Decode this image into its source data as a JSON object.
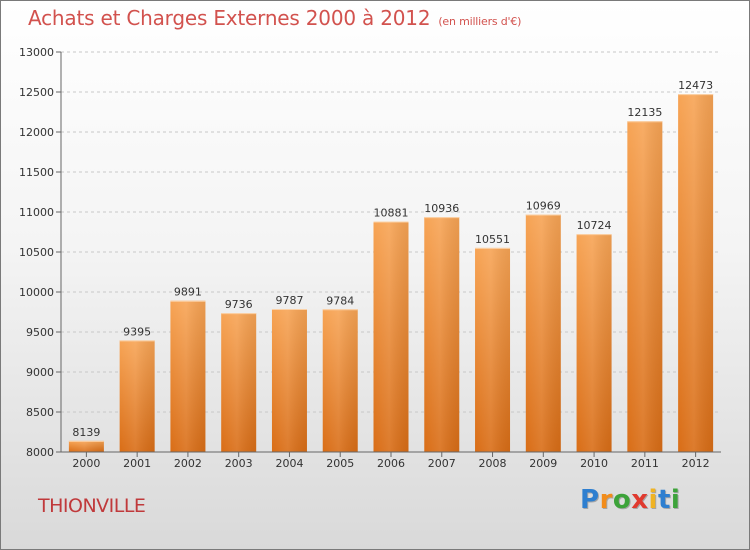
{
  "header": {
    "title": "Achats et Charges Externes 2000 à 2012",
    "subtitle": "(en milliers d'€)"
  },
  "footer": {
    "city": "THIONVILLE",
    "logo_letters": [
      "P",
      "r",
      "o",
      "x",
      "i",
      "t",
      "i"
    ],
    "logo_colors": [
      "#2e7fd0",
      "#f28c1a",
      "#3da33a",
      "#e03a2f",
      "#f0b323",
      "#2e7fd0",
      "#3da33a"
    ]
  },
  "colors": {
    "bar_top": "#f7a455",
    "bar_bottom": "#d96d16",
    "gridline": "#c8c8c8",
    "title": "#d2524e",
    "city": "#c0393b"
  },
  "chart_data": {
    "type": "bar",
    "title": "Achats et Charges Externes 2000 à 2012",
    "categories": [
      "2000",
      "2001",
      "2002",
      "2003",
      "2004",
      "2005",
      "2006",
      "2007",
      "2008",
      "2009",
      "2010",
      "2011",
      "2012"
    ],
    "values": [
      8139,
      9395,
      9891,
      9736,
      9787,
      9784,
      10881,
      10936,
      10551,
      10969,
      10724,
      12135,
      12473
    ],
    "ylim": [
      8000,
      13000
    ],
    "yticks": [
      8000,
      8500,
      9000,
      9500,
      10000,
      10500,
      11000,
      11500,
      12000,
      12500,
      13000
    ],
    "grid": true,
    "data_labels": true
  }
}
